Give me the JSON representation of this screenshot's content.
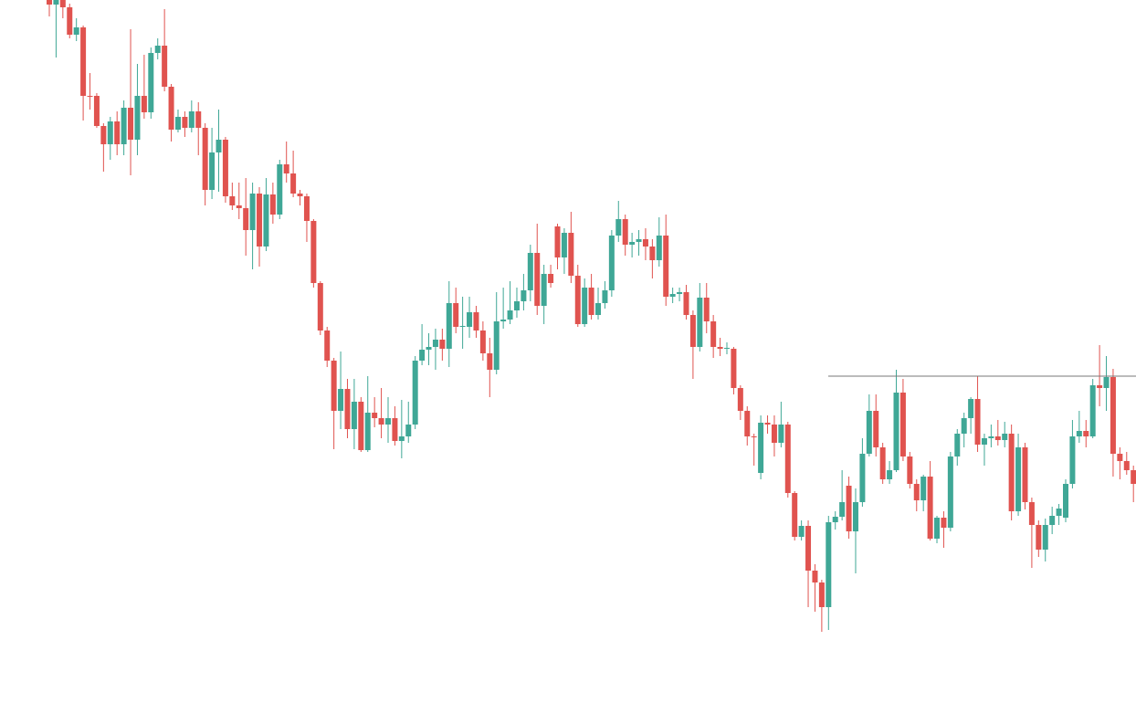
{
  "chart_data": {
    "type": "candlestick",
    "up_color": "#3fa796",
    "down_color": "#e0534f",
    "ylim": [
      -70,
      700
    ],
    "series": [
      {
        "open": [
          700,
          695,
          700,
          692,
          662,
          670,
          595,
          595,
          562,
          542,
          567,
          542,
          582,
          547,
          595,
          577,
          642,
          650,
          605,
          558,
          572,
          560,
          578,
          560,
          492,
          533,
          547,
          485,
          475,
          472,
          448,
          488,
          430,
          487,
          465,
          520,
          510,
          488,
          485,
          458,
          390,
          338,
          305,
          250,
          274,
          230,
          260,
          207,
          248,
          242,
          235,
          242,
          217,
          222,
          235,
          305,
          317,
          320,
          328,
          318,
          368,
          342,
          342,
          358,
          338,
          313,
          295,
          348,
          350,
          360,
          370,
          382,
          423,
          365,
          400,
          452,
          418,
          445,
          398,
          345,
          385,
          355,
          368,
          382,
          442,
          460,
          432,
          435,
          438,
          430,
          415,
          442,
          375,
          378,
          380,
          355,
          320,
          374,
          348,
          320,
          318,
          318,
          275,
          250,
          222,
          182,
          237,
          235,
          215,
          235,
          160,
          112,
          124,
          75,
          62,
          35,
          128,
          134,
          168,
          118,
          150,
          203,
          250,
          210,
          175,
          185,
          270,
          200,
          170,
          152,
          178,
          110,
          133,
          122,
          200,
          225,
          242,
          263,
          213,
          220,
          222,
          218,
          225,
          140,
          210,
          150,
          125,
          98,
          125,
          135,
          133,
          170,
          222,
          228,
          222,
          278,
          275,
          287,
          203,
          195,
          185
        ],
        "high": [
          702,
          703,
          704,
          696,
          680,
          672,
          620,
          598,
          565,
          572,
          578,
          590,
          668,
          630,
          640,
          648,
          658,
          690,
          608,
          580,
          578,
          590,
          588,
          565,
          560,
          580,
          550,
          500,
          500,
          505,
          500,
          495,
          505,
          500,
          525,
          545,
          535,
          492,
          488,
          460,
          392,
          342,
          308,
          315,
          285,
          285,
          265,
          288,
          265,
          275,
          265,
          255,
          262,
          260,
          310,
          345,
          335,
          340,
          340,
          392,
          385,
          375,
          375,
          365,
          348,
          330,
          380,
          385,
          392,
          385,
          400,
          432,
          455,
          410,
          410,
          455,
          450,
          468,
          410,
          395,
          400,
          385,
          392,
          448,
          480,
          465,
          445,
          448,
          450,
          438,
          462,
          465,
          385,
          385,
          388,
          360,
          390,
          390,
          355,
          330,
          325,
          320,
          278,
          255,
          225,
          245,
          245,
          245,
          260,
          238,
          162,
          130,
          130,
          82,
          65,
          135,
          140,
          185,
          178,
          165,
          220,
          268,
          268,
          215,
          195,
          295,
          285,
          205,
          175,
          180,
          195,
          135,
          140,
          205,
          230,
          248,
          265,
          288,
          225,
          235,
          240,
          238,
          235,
          225,
          215,
          155,
          130,
          132,
          145,
          148,
          175,
          240,
          250,
          240,
          285,
          322,
          310,
          296,
          210,
          205,
          190
        ],
        "low": [
          682,
          637,
          680,
          658,
          655,
          568,
          580,
          560,
          512,
          525,
          530,
          530,
          508,
          530,
          570,
          570,
          635,
          600,
          545,
          555,
          550,
          555,
          530,
          475,
          482,
          490,
          478,
          470,
          460,
          420,
          405,
          408,
          425,
          455,
          460,
          500,
          484,
          475,
          435,
          385,
          333,
          298,
          208,
          230,
          220,
          208,
          205,
          205,
          232,
          220,
          215,
          212,
          198,
          215,
          230,
          300,
          300,
          295,
          305,
          298,
          335,
          318,
          330,
          330,
          305,
          265,
          290,
          340,
          345,
          352,
          360,
          370,
          355,
          345,
          385,
          405,
          400,
          390,
          342,
          342,
          350,
          350,
          362,
          375,
          435,
          420,
          418,
          420,
          415,
          395,
          408,
          365,
          368,
          370,
          350,
          285,
          315,
          335,
          308,
          310,
          312,
          268,
          240,
          212,
          190,
          175,
          225,
          200,
          210,
          155,
          108,
          108,
          35,
          30,
          8,
          10,
          120,
          130,
          110,
          72,
          145,
          200,
          200,
          170,
          170,
          183,
          195,
          165,
          140,
          140,
          108,
          105,
          100,
          118,
          190,
          210,
          225,
          205,
          190,
          210,
          212,
          210,
          130,
          135,
          142,
          78,
          90,
          85,
          115,
          125,
          128,
          165,
          215,
          210,
          220,
          255,
          250,
          178,
          175,
          180,
          150
        ],
        "close": [
          695,
          700,
          692,
          662,
          670,
          595,
          594,
          562,
          542,
          567,
          542,
          582,
          547,
          595,
          577,
          642,
          650,
          605,
          558,
          572,
          560,
          578,
          560,
          492,
          533,
          547,
          485,
          475,
          472,
          448,
          488,
          430,
          487,
          465,
          520,
          510,
          488,
          485,
          458,
          390,
          338,
          305,
          250,
          274,
          230,
          260,
          207,
          248,
          242,
          235,
          242,
          217,
          222,
          235,
          305,
          317,
          320,
          328,
          318,
          368,
          342,
          343,
          358,
          338,
          313,
          295,
          348,
          350,
          360,
          370,
          382,
          423,
          365,
          400,
          390,
          418,
          445,
          398,
          345,
          385,
          355,
          368,
          382,
          442,
          460,
          432,
          435,
          438,
          430,
          415,
          442,
          375,
          378,
          380,
          355,
          320,
          374,
          348,
          320,
          318,
          319,
          275,
          250,
          222,
          221,
          237,
          235,
          215,
          235,
          160,
          112,
          124,
          75,
          62,
          35,
          128,
          134,
          150,
          118,
          150,
          203,
          250,
          210,
          175,
          185,
          270,
          200,
          170,
          152,
          178,
          110,
          133,
          122,
          200,
          225,
          242,
          263,
          213,
          220,
          222,
          218,
          225,
          140,
          210,
          150,
          125,
          98,
          125,
          135,
          143,
          170,
          222,
          228,
          222,
          278,
          275,
          287,
          203,
          195,
          185,
          170
        ]
      }
    ],
    "levels": [
      {
        "value": 288,
        "color": "#777777"
      }
    ]
  }
}
